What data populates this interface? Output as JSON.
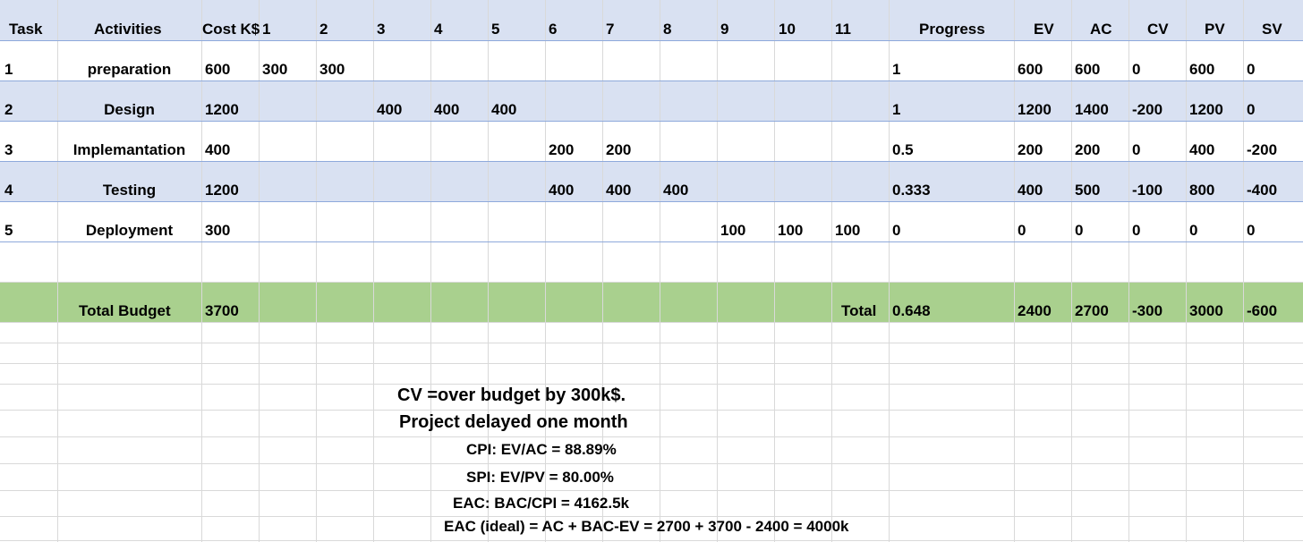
{
  "header": [
    "Task",
    "Activities",
    "Cost K$",
    "1",
    "2",
    "3",
    "4",
    "5",
    "6",
    "7",
    "8",
    "9",
    "10",
    "11",
    "Progress",
    "EV",
    "AC",
    "CV",
    "PV",
    "SV"
  ],
  "rows": [
    [
      "1",
      "preparation",
      "600",
      "300",
      "300",
      "",
      "",
      "",
      "",
      "",
      "",
      "",
      "",
      "",
      "1",
      "600",
      "600",
      "0",
      "600",
      "0"
    ],
    [
      "2",
      "Design",
      "1200",
      "",
      "",
      "400",
      "400",
      "400",
      "",
      "",
      "",
      "",
      "",
      "",
      "1",
      "1200",
      "1400",
      "-200",
      "1200",
      "0"
    ],
    [
      "3",
      "Implemantation",
      "400",
      "",
      "",
      "",
      "",
      "",
      "200",
      "200",
      "",
      "",
      "",
      "",
      "0.5",
      "200",
      "200",
      "0",
      "400",
      "-200"
    ],
    [
      "4",
      "Testing",
      "1200",
      "",
      "",
      "",
      "",
      "",
      "400",
      "400",
      "400",
      "",
      "",
      "",
      "0.333",
      "400",
      "500",
      "-100",
      "800",
      "-400"
    ],
    [
      "5",
      "Deployment",
      "300",
      "",
      "",
      "",
      "",
      "",
      "",
      "",
      "",
      "100",
      "100",
      "100",
      "0",
      "0",
      "0",
      "0",
      "0",
      "0"
    ]
  ],
  "total_row": {
    "budget_label": "Total Budget",
    "budget_value": "3700",
    "total_label": "Total",
    "progress": "0.648",
    "ev": "2400",
    "ac": "2700",
    "cv": "-300",
    "pv": "3000",
    "sv": "-600"
  },
  "notes": {
    "cv_line": "CV =over budget by 300k$.",
    "delay_line": "Project delayed one month",
    "cpi_line": "CPI: EV/AC = 88.89%",
    "spi_line": "SPI: EV/PV = 80.00%",
    "eac_line": "EAC: BAC/CPI = 4162.5k",
    "eac_ideal_line": "EAC (ideal) = AC + BAC-EV = 2700 + 3700 - 2400 = 4000k"
  },
  "colors": {
    "header_band": "#d9e1f2",
    "alt_band": "#d9e1f2",
    "total_band": "#a9d08e",
    "gridline": "#d9d9d9",
    "band_border": "#8ea9db"
  }
}
